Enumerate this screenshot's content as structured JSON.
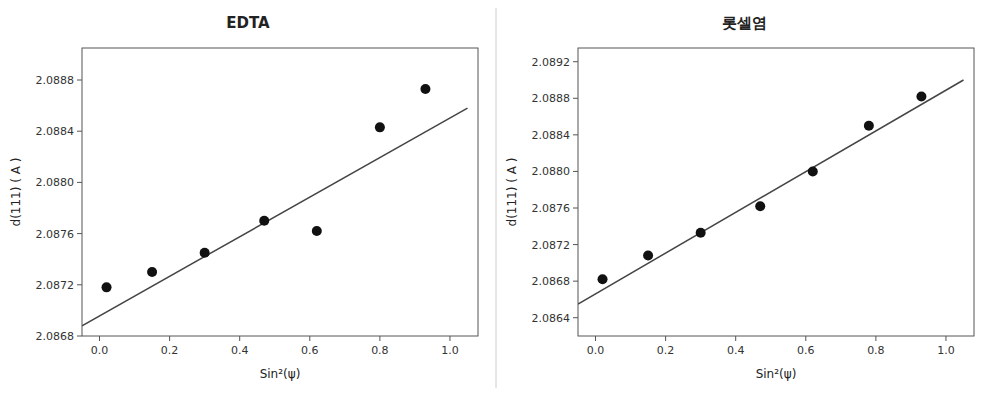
{
  "chart_data": [
    {
      "type": "scatter",
      "title": "EDTA",
      "xlabel": "Sin²(ψ)",
      "ylabel": "d(111) ( A )",
      "xlim": [
        -0.05,
        1.08
      ],
      "ylim": [
        2.0868,
        2.08905
      ],
      "xticks": [
        {
          "value": 0.0,
          "label": "0.0"
        },
        0.2,
        0.4,
        0.6,
        0.8,
        {
          "value": 1.0,
          "label": "1.0"
        }
      ],
      "yticks": [
        2.0868,
        2.0872,
        2.0876,
        {
          "value": 2.088,
          "label": "2.0880"
        },
        2.0884,
        2.0888
      ],
      "series": [
        {
          "type": "scatter",
          "color": "#111111",
          "x": [
            0.02,
            0.15,
            0.3,
            0.47,
            0.62,
            0.8,
            0.93
          ],
          "values": [
            2.08718,
            2.0873,
            2.08745,
            2.0877,
            2.08762,
            2.08843,
            2.08873
          ]
        },
        {
          "type": "line",
          "color": "#444444",
          "x": [
            -0.05,
            1.05
          ],
          "values": [
            2.08688,
            2.08858
          ]
        }
      ]
    },
    {
      "type": "scatter",
      "title": "롯셀염",
      "xlabel": "Sin²(ψ)",
      "ylabel": "d(111) ( A )",
      "xlim": [
        -0.05,
        1.08
      ],
      "ylim": [
        2.0862,
        2.08935
      ],
      "xticks": [
        {
          "value": 0.0,
          "label": "0.0"
        },
        0.2,
        0.4,
        0.6,
        0.8,
        {
          "value": 1.0,
          "label": "1.0"
        }
      ],
      "yticks": [
        2.0864,
        2.0868,
        2.0872,
        2.0876,
        {
          "value": 2.088,
          "label": "2.0880"
        },
        2.0884,
        2.0888,
        2.0892
      ],
      "series": [
        {
          "type": "scatter",
          "color": "#111111",
          "x": [
            0.02,
            0.15,
            0.3,
            0.47,
            0.62,
            0.78,
            0.93
          ],
          "values": [
            2.08682,
            2.08708,
            2.08733,
            2.08762,
            2.088,
            2.0885,
            2.08882
          ]
        },
        {
          "type": "line",
          "color": "#444444",
          "x": [
            -0.05,
            1.05
          ],
          "values": [
            2.08655,
            2.089
          ]
        }
      ]
    }
  ]
}
